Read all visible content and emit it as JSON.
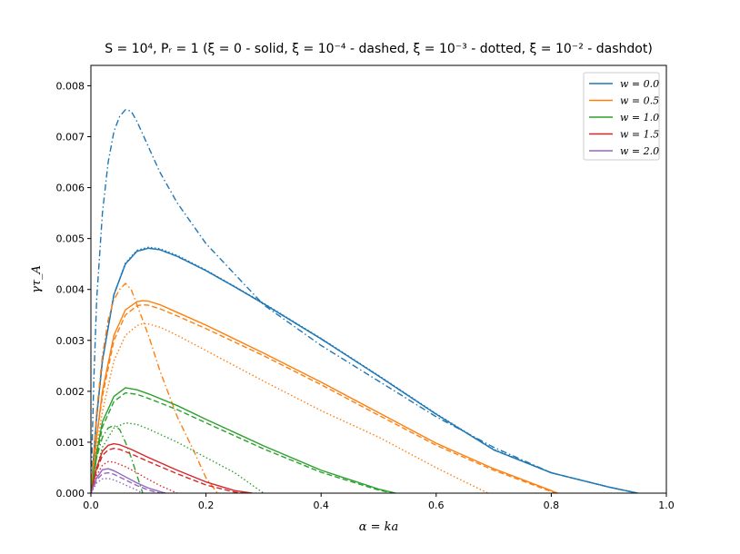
{
  "chart_data": {
    "type": "line",
    "title": "S = 10⁴, Pᵣ = 1 (ξ = 0 - solid, ξ = 10⁻⁴ - dashed, ξ = 10⁻³ - dotted, ξ = 10⁻² - dashdot)",
    "xlabel": "α = ka",
    "ylabel": "γτ_A",
    "xlim": [
      0.0,
      1.0
    ],
    "ylim": [
      0.0,
      0.0084
    ],
    "x_ticks": [
      "0.0",
      "0.2",
      "0.4",
      "0.6",
      "0.8",
      "1.0"
    ],
    "y_ticks": [
      "0.000",
      "0.001",
      "0.002",
      "0.003",
      "0.004",
      "0.005",
      "0.006",
      "0.007",
      "0.008"
    ],
    "grid": false,
    "legend_position": "top-right",
    "legend": [
      "w = 0.0",
      "w = 0.5",
      "w = 1.0",
      "w = 1.5",
      "w = 2.0"
    ],
    "colors": {
      "w0": "#1f77b4",
      "w05": "#ff7f0e",
      "w1": "#2ca02c",
      "w15": "#d62728",
      "w2": "#9467bd"
    },
    "series": [
      {
        "name": "w = 0.0",
        "color": "#1f77b4",
        "style": "solid",
        "points": [
          [
            0,
            0
          ],
          [
            0.01,
            0.0015
          ],
          [
            0.02,
            0.0026
          ],
          [
            0.04,
            0.0039
          ],
          [
            0.06,
            0.0045
          ],
          [
            0.08,
            0.00475
          ],
          [
            0.1,
            0.00481
          ],
          [
            0.12,
            0.00478
          ],
          [
            0.15,
            0.00465
          ],
          [
            0.2,
            0.00437
          ],
          [
            0.25,
            0.00405
          ],
          [
            0.3,
            0.00372
          ],
          [
            0.4,
            0.00303
          ],
          [
            0.5,
            0.0023
          ],
          [
            0.6,
            0.00155
          ],
          [
            0.7,
            0.00085
          ],
          [
            0.8,
            0.0004
          ],
          [
            0.9,
            0.00012
          ],
          [
            0.95,
            0.0
          ]
        ]
      },
      {
        "name": "w = 0.0",
        "color": "#1f77b4",
        "style": "dashed",
        "points": [
          [
            0,
            0
          ],
          [
            0.01,
            0.0015
          ],
          [
            0.02,
            0.0026
          ],
          [
            0.04,
            0.0039
          ],
          [
            0.06,
            0.0045
          ],
          [
            0.08,
            0.00475
          ],
          [
            0.1,
            0.00481
          ],
          [
            0.12,
            0.00478
          ],
          [
            0.15,
            0.00465
          ],
          [
            0.2,
            0.00437
          ],
          [
            0.25,
            0.00405
          ],
          [
            0.3,
            0.00372
          ],
          [
            0.4,
            0.00303
          ],
          [
            0.5,
            0.0023
          ],
          [
            0.6,
            0.00155
          ],
          [
            0.7,
            0.00085
          ],
          [
            0.8,
            0.0004
          ],
          [
            0.9,
            0.00012
          ],
          [
            0.95,
            0.0
          ]
        ]
      },
      {
        "name": "w = 0.0",
        "color": "#1f77b4",
        "style": "dotted",
        "points": [
          [
            0,
            0
          ],
          [
            0.01,
            0.0015
          ],
          [
            0.02,
            0.0026
          ],
          [
            0.04,
            0.0039
          ],
          [
            0.06,
            0.00452
          ],
          [
            0.08,
            0.00477
          ],
          [
            0.1,
            0.00483
          ],
          [
            0.12,
            0.0048
          ],
          [
            0.15,
            0.00467
          ],
          [
            0.2,
            0.00438
          ],
          [
            0.25,
            0.00406
          ],
          [
            0.3,
            0.00373
          ],
          [
            0.4,
            0.00304
          ],
          [
            0.5,
            0.00231
          ],
          [
            0.6,
            0.00156
          ],
          [
            0.7,
            0.00086
          ],
          [
            0.8,
            0.0004
          ],
          [
            0.9,
            0.00012
          ],
          [
            0.95,
            0.0
          ]
        ]
      },
      {
        "name": "w = 0.0",
        "color": "#1f77b4",
        "style": "dashdot",
        "points": [
          [
            0,
            0
          ],
          [
            0.005,
            0.0022
          ],
          [
            0.01,
            0.0038
          ],
          [
            0.02,
            0.0055
          ],
          [
            0.03,
            0.0065
          ],
          [
            0.04,
            0.0071
          ],
          [
            0.05,
            0.0074
          ],
          [
            0.06,
            0.00753
          ],
          [
            0.07,
            0.0075
          ],
          [
            0.08,
            0.0073
          ],
          [
            0.1,
            0.0068
          ],
          [
            0.12,
            0.0063
          ],
          [
            0.15,
            0.0057
          ],
          [
            0.2,
            0.0049
          ],
          [
            0.3,
            0.0037
          ],
          [
            0.4,
            0.0029
          ],
          [
            0.5,
            0.0022
          ],
          [
            0.6,
            0.0015
          ],
          [
            0.7,
            0.0009
          ],
          [
            0.8,
            0.0004
          ],
          [
            0.9,
            0.00012
          ],
          [
            0.95,
            0.0
          ]
        ]
      },
      {
        "name": "w = 0.5",
        "color": "#ff7f0e",
        "style": "solid",
        "points": [
          [
            0,
            0
          ],
          [
            0.01,
            0.0011
          ],
          [
            0.02,
            0.002
          ],
          [
            0.04,
            0.0031
          ],
          [
            0.06,
            0.0036
          ],
          [
            0.08,
            0.00376
          ],
          [
            0.09,
            0.00378
          ],
          [
            0.1,
            0.00377
          ],
          [
            0.12,
            0.0037
          ],
          [
            0.15,
            0.00355
          ],
          [
            0.2,
            0.0033
          ],
          [
            0.3,
            0.00275
          ],
          [
            0.4,
            0.00218
          ],
          [
            0.5,
            0.00158
          ],
          [
            0.6,
            0.00098
          ],
          [
            0.7,
            0.00048
          ],
          [
            0.8,
            5e-05
          ],
          [
            0.81,
            0.0
          ]
        ]
      },
      {
        "name": "w = 0.5",
        "color": "#ff7f0e",
        "style": "dashed",
        "points": [
          [
            0,
            0
          ],
          [
            0.01,
            0.0011
          ],
          [
            0.02,
            0.0019
          ],
          [
            0.04,
            0.003
          ],
          [
            0.06,
            0.0035
          ],
          [
            0.08,
            0.00368
          ],
          [
            0.09,
            0.0037
          ],
          [
            0.1,
            0.00369
          ],
          [
            0.12,
            0.00362
          ],
          [
            0.15,
            0.00348
          ],
          [
            0.2,
            0.00323
          ],
          [
            0.3,
            0.0027
          ],
          [
            0.4,
            0.00213
          ],
          [
            0.5,
            0.00153
          ],
          [
            0.6,
            0.00094
          ],
          [
            0.7,
            0.00045
          ],
          [
            0.8,
            3e-05
          ],
          [
            0.815,
            0.0
          ]
        ]
      },
      {
        "name": "w = 0.5",
        "color": "#ff7f0e",
        "style": "dotted",
        "points": [
          [
            0,
            0
          ],
          [
            0.01,
            0.0009
          ],
          [
            0.02,
            0.0016
          ],
          [
            0.04,
            0.0026
          ],
          [
            0.06,
            0.0031
          ],
          [
            0.08,
            0.00329
          ],
          [
            0.09,
            0.00333
          ],
          [
            0.1,
            0.00332
          ],
          [
            0.12,
            0.00326
          ],
          [
            0.15,
            0.0031
          ],
          [
            0.2,
            0.0028
          ],
          [
            0.3,
            0.0022
          ],
          [
            0.4,
            0.00162
          ],
          [
            0.5,
            0.0011
          ],
          [
            0.6,
            0.0005
          ],
          [
            0.65,
            0.00022
          ],
          [
            0.69,
            0.0
          ]
        ]
      },
      {
        "name": "w = 0.5",
        "color": "#ff7f0e",
        "style": "dashdot",
        "points": [
          [
            0,
            0
          ],
          [
            0.01,
            0.0016
          ],
          [
            0.02,
            0.0027
          ],
          [
            0.03,
            0.0034
          ],
          [
            0.04,
            0.0038
          ],
          [
            0.05,
            0.004
          ],
          [
            0.06,
            0.00412
          ],
          [
            0.07,
            0.004
          ],
          [
            0.08,
            0.0037
          ],
          [
            0.1,
            0.0031
          ],
          [
            0.12,
            0.0024
          ],
          [
            0.15,
            0.0015
          ],
          [
            0.18,
            0.0008
          ],
          [
            0.2,
            0.0003
          ],
          [
            0.22,
            0.0
          ]
        ]
      },
      {
        "name": "w = 1.0",
        "color": "#2ca02c",
        "style": "solid",
        "points": [
          [
            0,
            0
          ],
          [
            0.01,
            0.0008
          ],
          [
            0.02,
            0.0014
          ],
          [
            0.04,
            0.0019
          ],
          [
            0.06,
            0.00207
          ],
          [
            0.08,
            0.00203
          ],
          [
            0.1,
            0.00195
          ],
          [
            0.15,
            0.00172
          ],
          [
            0.2,
            0.00145
          ],
          [
            0.3,
            0.00093
          ],
          [
            0.4,
            0.00045
          ],
          [
            0.5,
            8e-05
          ],
          [
            0.53,
            0.0
          ]
        ]
      },
      {
        "name": "w = 1.0",
        "color": "#2ca02c",
        "style": "dashed",
        "points": [
          [
            0,
            0
          ],
          [
            0.01,
            0.0007
          ],
          [
            0.02,
            0.0013
          ],
          [
            0.04,
            0.0018
          ],
          [
            0.06,
            0.00197
          ],
          [
            0.08,
            0.00194
          ],
          [
            0.1,
            0.00186
          ],
          [
            0.15,
            0.00164
          ],
          [
            0.2,
            0.00138
          ],
          [
            0.3,
            0.00087
          ],
          [
            0.4,
            0.00041
          ],
          [
            0.5,
            6e-05
          ],
          [
            0.525,
            0.0
          ]
        ]
      },
      {
        "name": "w = 1.0",
        "color": "#2ca02c",
        "style": "dotted",
        "points": [
          [
            0,
            0
          ],
          [
            0.01,
            0.0005
          ],
          [
            0.02,
            0.0009
          ],
          [
            0.04,
            0.00128
          ],
          [
            0.06,
            0.00138
          ],
          [
            0.08,
            0.00135
          ],
          [
            0.1,
            0.00126
          ],
          [
            0.15,
            0.001
          ],
          [
            0.2,
            0.0007
          ],
          [
            0.25,
            0.0004
          ],
          [
            0.3,
            0.0
          ]
        ]
      },
      {
        "name": "w = 1.0",
        "color": "#2ca02c",
        "style": "dashdot",
        "points": [
          [
            0,
            0
          ],
          [
            0.01,
            0.0007
          ],
          [
            0.02,
            0.0011
          ],
          [
            0.03,
            0.00128
          ],
          [
            0.04,
            0.00133
          ],
          [
            0.05,
            0.00125
          ],
          [
            0.06,
            0.001
          ],
          [
            0.07,
            0.0007
          ],
          [
            0.08,
            0.00035
          ],
          [
            0.09,
            0.0
          ]
        ]
      },
      {
        "name": "w = 1.5",
        "color": "#d62728",
        "style": "solid",
        "points": [
          [
            0,
            0
          ],
          [
            0.01,
            0.0005
          ],
          [
            0.02,
            0.00082
          ],
          [
            0.03,
            0.00094
          ],
          [
            0.04,
            0.00097
          ],
          [
            0.05,
            0.00095
          ],
          [
            0.07,
            0.00086
          ],
          [
            0.1,
            0.0007
          ],
          [
            0.15,
            0.00045
          ],
          [
            0.2,
            0.00022
          ],
          [
            0.25,
            5e-05
          ],
          [
            0.28,
            0.0
          ]
        ]
      },
      {
        "name": "w = 1.5",
        "color": "#d62728",
        "style": "dashed",
        "points": [
          [
            0,
            0
          ],
          [
            0.01,
            0.00045
          ],
          [
            0.02,
            0.00074
          ],
          [
            0.03,
            0.00085
          ],
          [
            0.04,
            0.00088
          ],
          [
            0.05,
            0.00086
          ],
          [
            0.07,
            0.00077
          ],
          [
            0.1,
            0.00062
          ],
          [
            0.15,
            0.00038
          ],
          [
            0.2,
            0.00016
          ],
          [
            0.25,
            2e-05
          ],
          [
            0.265,
            0.0
          ]
        ]
      },
      {
        "name": "w = 1.5",
        "color": "#d62728",
        "style": "dotted",
        "points": [
          [
            0,
            0
          ],
          [
            0.01,
            0.00035
          ],
          [
            0.02,
            0.00055
          ],
          [
            0.03,
            0.00062
          ],
          [
            0.04,
            0.00061
          ],
          [
            0.06,
            0.00052
          ],
          [
            0.08,
            0.0004
          ],
          [
            0.1,
            0.00027
          ],
          [
            0.12,
            0.00015
          ],
          [
            0.15,
            0.0
          ]
        ]
      },
      {
        "name": "w = 2.0",
        "color": "#9467bd",
        "style": "solid",
        "points": [
          [
            0,
            0
          ],
          [
            0.01,
            0.0003
          ],
          [
            0.02,
            0.00046
          ],
          [
            0.03,
            0.00048
          ],
          [
            0.04,
            0.00044
          ],
          [
            0.06,
            0.00032
          ],
          [
            0.08,
            0.0002
          ],
          [
            0.1,
            0.0001
          ],
          [
            0.12,
            3e-05
          ],
          [
            0.13,
            0.0
          ]
        ]
      },
      {
        "name": "w = 2.0",
        "color": "#9467bd",
        "style": "dashed",
        "points": [
          [
            0,
            0
          ],
          [
            0.01,
            0.00026
          ],
          [
            0.02,
            0.00038
          ],
          [
            0.03,
            0.0004
          ],
          [
            0.04,
            0.00037
          ],
          [
            0.06,
            0.00026
          ],
          [
            0.08,
            0.00015
          ],
          [
            0.1,
            6e-05
          ],
          [
            0.12,
            0.0
          ]
        ]
      },
      {
        "name": "w = 2.0",
        "color": "#9467bd",
        "style": "dotted",
        "points": [
          [
            0,
            0
          ],
          [
            0.01,
            0.0002
          ],
          [
            0.02,
            0.00028
          ],
          [
            0.03,
            0.00029
          ],
          [
            0.04,
            0.00026
          ],
          [
            0.06,
            0.00016
          ],
          [
            0.08,
            6e-05
          ],
          [
            0.09,
            0.0
          ]
        ]
      }
    ]
  }
}
